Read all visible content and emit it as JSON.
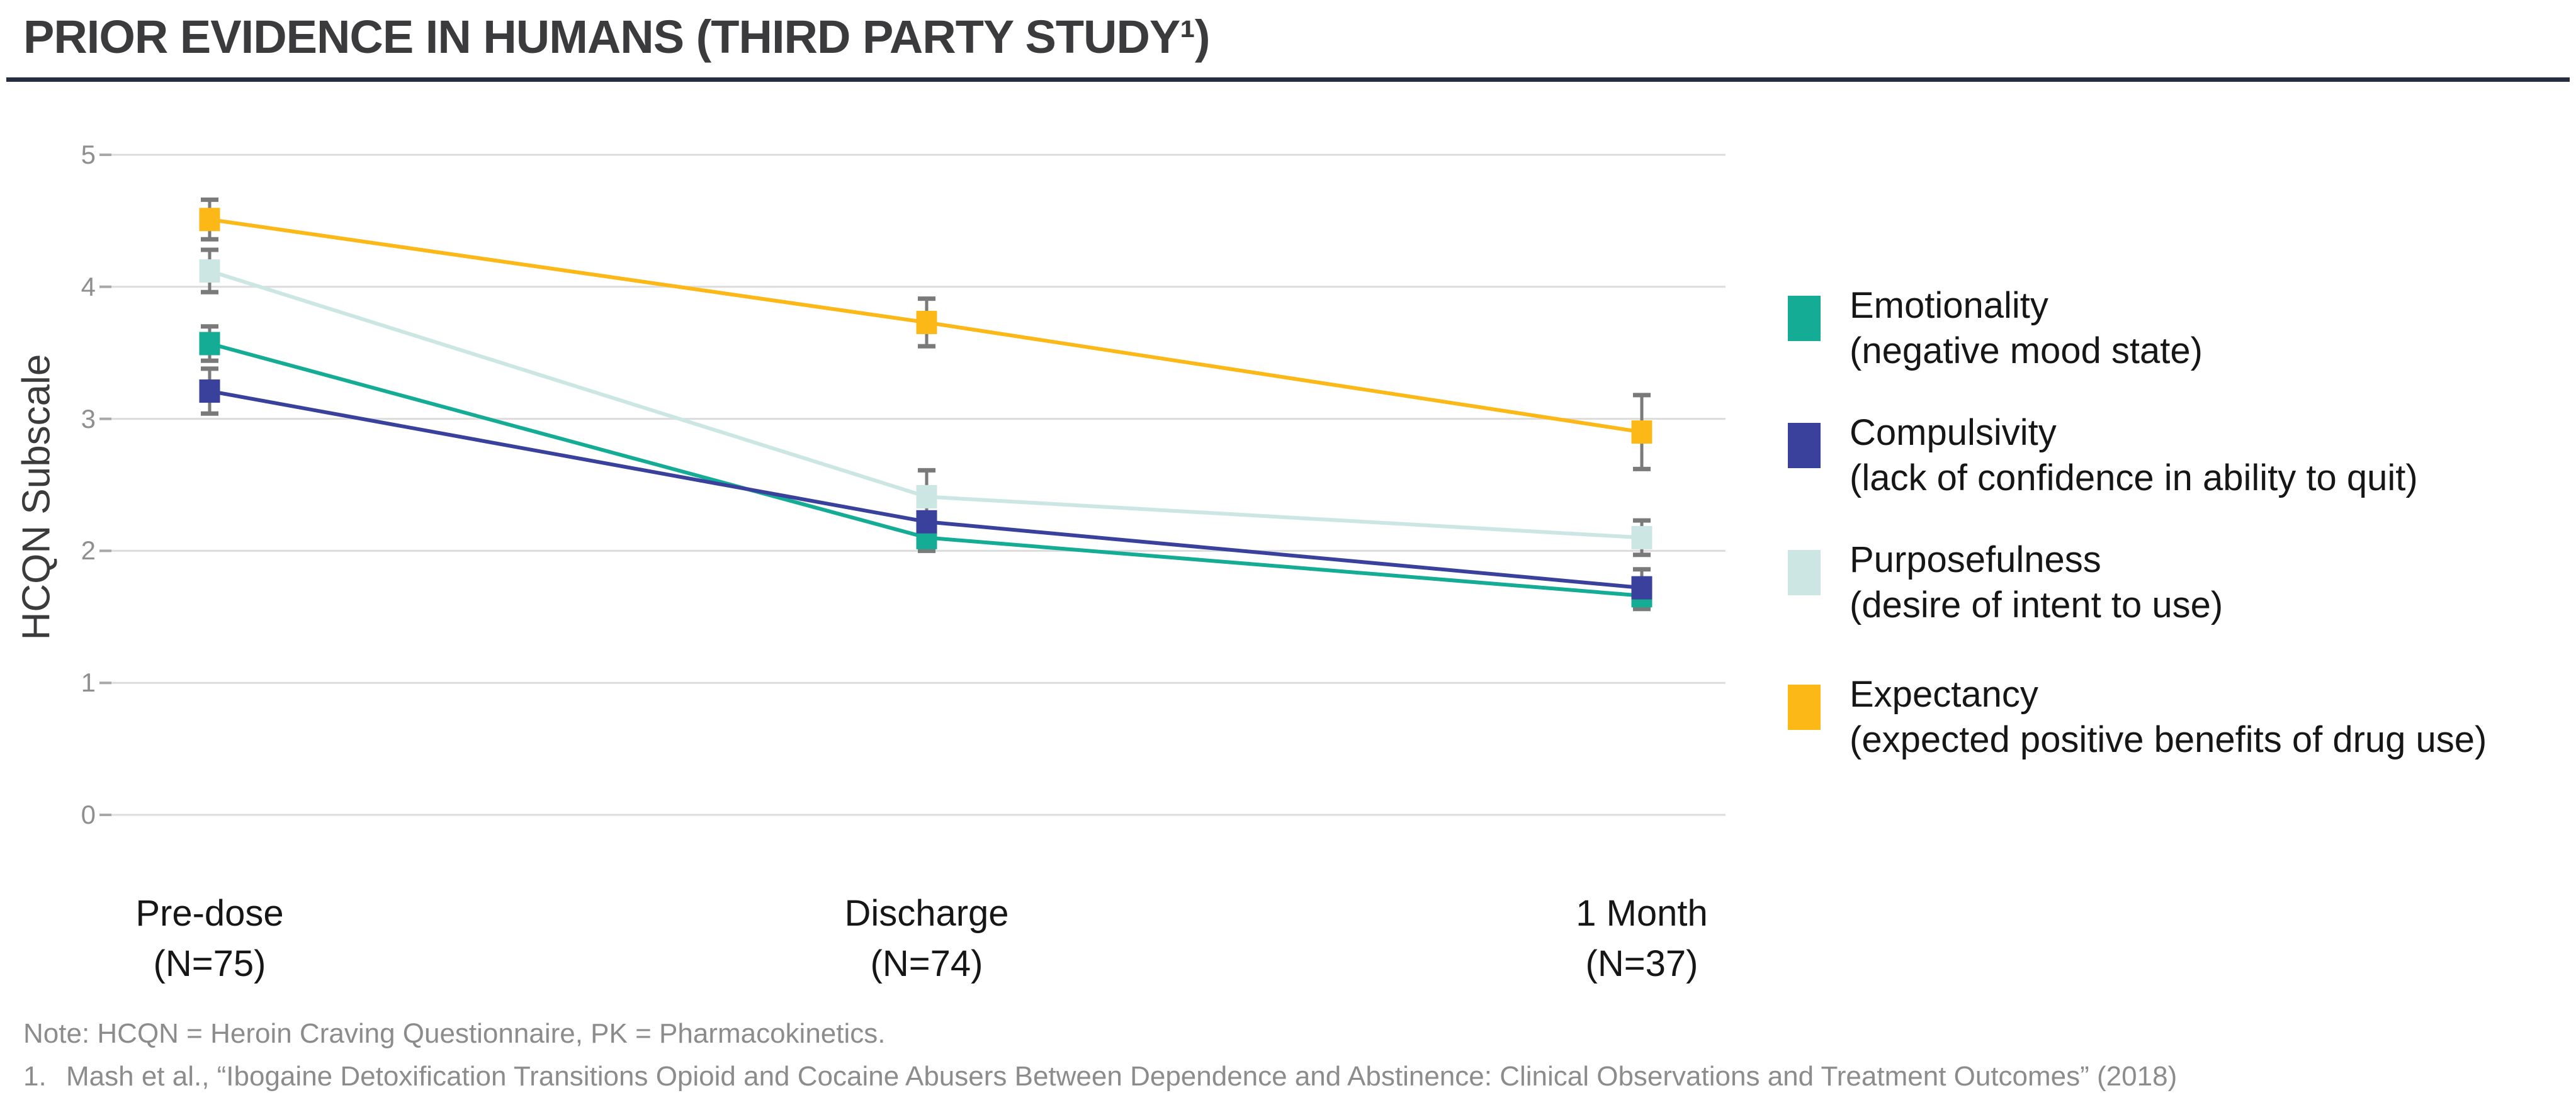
{
  "header": {
    "title": "PRIOR EVIDENCE IN HUMANS (THIRD PARTY STUDY¹)"
  },
  "chart_data": {
    "type": "line",
    "title": "PRIOR EVIDENCE IN HUMANS (THIRD PARTY STUDY 1)",
    "xlabel": "",
    "ylabel": "HCQN Subscale",
    "ylim": [
      0,
      5
    ],
    "yticks": [
      0,
      1,
      2,
      3,
      4,
      5
    ],
    "grid": true,
    "legend_position": "right",
    "marker": "square",
    "error_bars": true,
    "error_bar_color": "#7A7A7A",
    "gridline_color": "#DCDCDC",
    "categories": [
      {
        "label": "Pre-dose",
        "n": "(N=75)"
      },
      {
        "label": "Discharge",
        "n": "(N=74)"
      },
      {
        "label": "1 Month",
        "n": "(N=37)"
      }
    ],
    "series": [
      {
        "name": "Emotionality",
        "desc": "(negative mood state)",
        "color": "#14AC95",
        "values": [
          3.57,
          2.1,
          1.66
        ],
        "errors": [
          0.13,
          0.1,
          0.1
        ]
      },
      {
        "name": "Compulsivity",
        "desc": "(lack of confidence in ability to quit)",
        "color": "#3A419D",
        "values": [
          3.21,
          2.22,
          1.72
        ],
        "errors": [
          0.17,
          0.12,
          0.14
        ]
      },
      {
        "name": "Purposefulness",
        "desc": "(desire of intent to use)",
        "color": "#CCE7E3",
        "values": [
          4.12,
          2.41,
          2.1
        ],
        "errors": [
          0.16,
          0.2,
          0.13
        ]
      },
      {
        "name": "Expectancy",
        "desc": "(expected positive benefits of drug use)",
        "color": "#FBB817",
        "values": [
          4.51,
          3.73,
          2.9
        ],
        "errors": [
          0.15,
          0.18,
          0.28
        ]
      }
    ]
  },
  "footer": {
    "note": "Note: HCQN = Heroin Craving Questionnaire, PK = Pharmacokinetics.",
    "footnote_number": "1.",
    "footnote_text": "Mash et al., “Ibogaine Detoxification Transitions Opioid and Cocaine Abusers Between Dependence and Abstinence: Clinical Observations and Treatment Outcomes” (2018)"
  }
}
